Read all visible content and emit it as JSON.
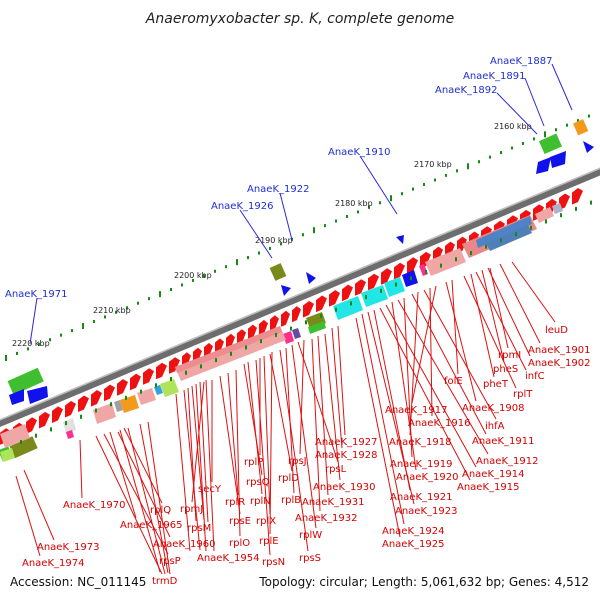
{
  "title": "Anaeromyxobacter sp. K, complete genome",
  "footer": {
    "accession": "Accession: NC_011145",
    "topology": "Topology: circular; Length: 5,061,632 bp; Genes: 4,512"
  },
  "scale_labels": [
    "2160 kbp",
    "2170 kbp",
    "2180 kbp",
    "2190 kbp",
    "2200 kbp",
    "2210 kbp",
    "2220 kbp"
  ],
  "blue_labels": [
    "AnaeK_1887",
    "AnaeK_1891",
    "AnaeK_1892",
    "AnaeK_1910",
    "AnaeK_1922",
    "AnaeK_1926",
    "AnaeK_1971"
  ],
  "red_labels": [
    "leuD",
    "AnaeK_1901",
    "rpmI",
    "AnaeK_1902",
    "pheS",
    "infC",
    "pheT",
    "rplT",
    "folE",
    "AnaeK_1908",
    "AnaeK_1917",
    "AnaeK_1916",
    "ihfA",
    "AnaeK_1918",
    "AnaeK_1911",
    "AnaeK_1927",
    "AnaeK_1928",
    "AnaeK_1919",
    "AnaeK_1912",
    "AnaeK_1920",
    "AnaeK_1914",
    "rpsJ",
    "rpsL",
    "AnaeK_1930",
    "AnaeK_1915",
    "AnaeK_1921",
    "rplP",
    "rplD",
    "AnaeK_1931",
    "AnaeK_1923",
    "rpsQ",
    "rplB",
    "rplN",
    "AnaeK_1932",
    "AnaeK_1924",
    "secY",
    "rplR",
    "rplX",
    "rplW",
    "AnaeK_1925",
    "AnaeK_1970",
    "rplQ",
    "rpmJ",
    "rpsE",
    "rplE",
    "rpsM",
    "AnaeK_1965",
    "rpsS",
    "rpsN",
    "rplO",
    "AnaeK_1960",
    "AnaeK_1954",
    "rpsP",
    "AnaeK_1973",
    "AnaeK_1974",
    "trmD"
  ],
  "colors": {
    "forward": "#ee1111",
    "reverse": "#1111ee",
    "backbone": "#7a7a7a",
    "blue_label": "#1f2fd0",
    "red_label": "#d40000",
    "tick": "#138a13"
  }
}
